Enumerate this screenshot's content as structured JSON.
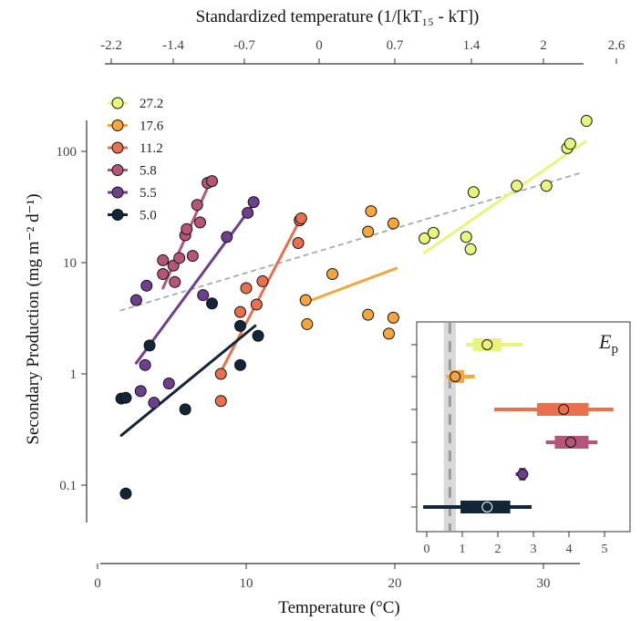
{
  "chart_data": {
    "type": "scatter",
    "xlabel": "Temperature (°C)",
    "x_ticks": [
      0,
      10,
      20,
      30
    ],
    "xlim": [
      0,
      33.5
    ],
    "ylabel": "Secondary Production (mg m⁻² d⁻¹)",
    "y_scale": "log",
    "y_ticks": [
      0.1,
      1,
      10,
      100
    ],
    "y_tick_labels": [
      "0.1",
      "1",
      "10",
      "100"
    ],
    "ylim": [
      0.05,
      300
    ],
    "top_axis": {
      "label": "Standardized temperature (1/[kT₁₅ - kT])",
      "ticks": [
        -2.2,
        -1.4,
        -0.7,
        0,
        0.7,
        1.4,
        2,
        2.6
      ],
      "tick_labels": [
        "-2.2",
        "-1.4",
        "-0.7",
        "0",
        "0.7",
        "1.4",
        "2",
        "2.6"
      ]
    },
    "legend": {
      "position": "top-left"
    },
    "overall_fit": {
      "style": "dashed",
      "color": "#aaaaaa",
      "x": [
        1.5,
        32.5
      ],
      "y": [
        3.7,
        64
      ]
    },
    "series": [
      {
        "name": "27.2",
        "color": "#e8f57a",
        "points": [
          [
            22,
            16.5
          ],
          [
            22.6,
            18.5
          ],
          [
            24.8,
            17
          ],
          [
            25.1,
            13.2
          ],
          [
            25.3,
            43
          ],
          [
            28.2,
            49
          ],
          [
            30.2,
            49
          ],
          [
            31.6,
            107
          ],
          [
            31.8,
            117
          ],
          [
            32.9,
            188
          ]
        ],
        "fit": {
          "x": [
            22,
            32.8
          ],
          "y": [
            12.3,
            122
          ]
        }
      },
      {
        "name": "17.6",
        "color": "#f6a63c",
        "points": [
          [
            14,
            4.6
          ],
          [
            14.1,
            2.8
          ],
          [
            15.8,
            7.9
          ],
          [
            18.2,
            19
          ],
          [
            18.4,
            29
          ],
          [
            18.2,
            3.4
          ],
          [
            19.6,
            2.3
          ],
          [
            19.9,
            3.2
          ],
          [
            19.9,
            22.5
          ]
        ],
        "fit": {
          "x": [
            14,
            20.1
          ],
          "y": [
            4.4,
            8.9
          ]
        }
      },
      {
        "name": "11.2",
        "color": "#e8704e",
        "points": [
          [
            8.3,
            1.0
          ],
          [
            8.3,
            0.57
          ],
          [
            9.6,
            3.6
          ],
          [
            10,
            5.9
          ],
          [
            10.7,
            4.2
          ],
          [
            11.1,
            6.8
          ],
          [
            13.5,
            15
          ],
          [
            13.6,
            24
          ],
          [
            13.7,
            25
          ]
        ],
        "fit": {
          "x": [
            8.3,
            13.6
          ],
          "y": [
            1.05,
            24
          ]
        }
      },
      {
        "name": "5.8",
        "color": "#b5557a",
        "points": [
          [
            4.4,
            10.5
          ],
          [
            4.4,
            7.9
          ],
          [
            5.1,
            9.4
          ],
          [
            5.2,
            6.7
          ],
          [
            5.5,
            11
          ],
          [
            5.9,
            17.6
          ],
          [
            6,
            20
          ],
          [
            6.4,
            11.5
          ],
          [
            6.7,
            33
          ],
          [
            6.9,
            23
          ],
          [
            7.4,
            52
          ],
          [
            7.7,
            54
          ]
        ],
        "fit": {
          "x": [
            4.4,
            7.7
          ],
          "y": [
            5.9,
            58
          ]
        }
      },
      {
        "name": "5.5",
        "color": "#6d3f8c",
        "points": [
          [
            2.6,
            4.6
          ],
          [
            2.9,
            0.7
          ],
          [
            3.2,
            1.2
          ],
          [
            3.3,
            6.2
          ],
          [
            3.8,
            0.55
          ],
          [
            4.8,
            0.82
          ],
          [
            7.1,
            5.1
          ],
          [
            8.7,
            17
          ],
          [
            10.1,
            28
          ],
          [
            10.5,
            35
          ]
        ],
        "fit": {
          "x": [
            2.6,
            10.6
          ],
          "y": [
            1.25,
            35
          ]
        }
      },
      {
        "name": "5.0",
        "color": "#12263a",
        "points": [
          [
            1.6,
            0.6
          ],
          [
            1.9,
            0.61
          ],
          [
            1.9,
            0.084
          ],
          [
            3.5,
            1.8
          ],
          [
            5.9,
            0.48
          ],
          [
            7.7,
            4.3
          ],
          [
            9.6,
            1.2
          ],
          [
            9.6,
            2.7
          ],
          [
            10.8,
            2.2
          ]
        ],
        "fit": {
          "x": [
            1.6,
            10.6
          ],
          "y": [
            0.28,
            2.7
          ]
        }
      }
    ],
    "inset": {
      "label_main": "E",
      "label_sub": "p",
      "x_ticks": [
        0,
        1,
        2,
        3,
        4,
        5
      ],
      "xlim": [
        -0.1,
        5.4
      ],
      "reference_line": {
        "x": 0.65,
        "band": [
          0.48,
          0.82
        ],
        "style": "dashed"
      },
      "rows": [
        {
          "series": "27.2",
          "estimate": 1.7,
          "inner": [
            1.3,
            2.1
          ],
          "outer": [
            1.1,
            2.7
          ]
        },
        {
          "series": "17.6",
          "estimate": 0.8,
          "inner": [
            0.65,
            1.05
          ],
          "outer": [
            0.55,
            1.35
          ]
        },
        {
          "series": "11.2",
          "estimate": 3.85,
          "inner": [
            3.1,
            4.55
          ],
          "outer": [
            1.9,
            5.25
          ]
        },
        {
          "series": "5.8",
          "estimate": 4.05,
          "inner": [
            3.6,
            4.55
          ],
          "outer": [
            3.35,
            4.8
          ]
        },
        {
          "series": "5.5",
          "estimate": 2.7,
          "inner": [
            2.6,
            2.78
          ],
          "outer": [
            2.5,
            2.85
          ]
        },
        {
          "series": "5.0",
          "estimate": 1.7,
          "inner": [
            0.95,
            2.35
          ],
          "outer": [
            -0.1,
            2.95
          ]
        }
      ]
    }
  }
}
